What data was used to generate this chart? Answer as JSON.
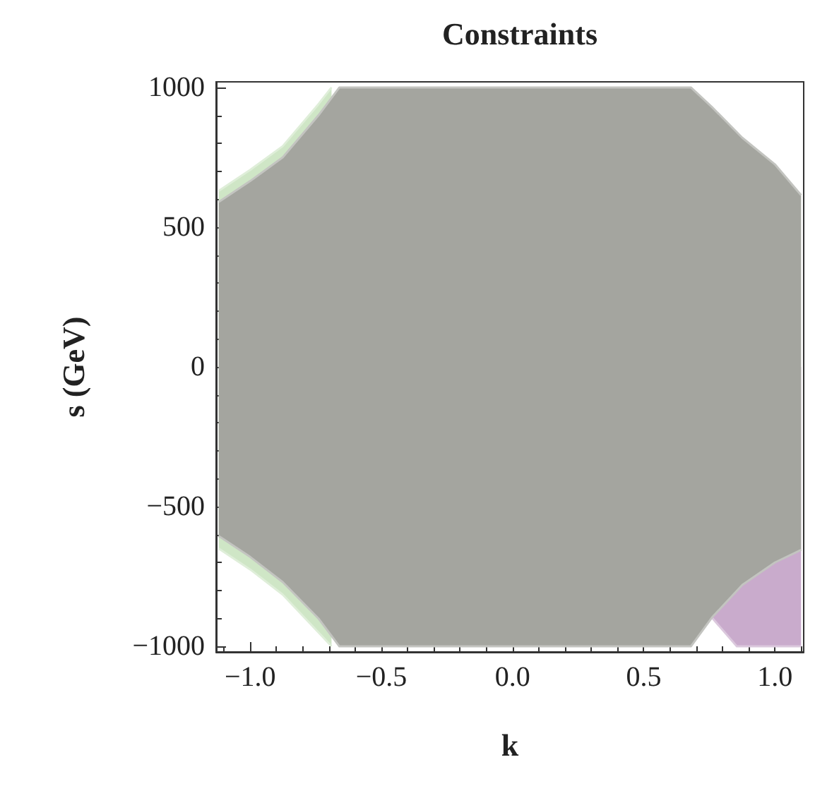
{
  "chart_data": {
    "type": "area",
    "title": "Constraints",
    "xlabel": "k",
    "ylabel": "s (GeV)",
    "xlim": [
      -1.13,
      1.11
    ],
    "ylim": [
      -1020,
      1020
    ],
    "xticks": [
      {
        "value": -1,
        "label": "−1.0"
      },
      {
        "value": -0.5,
        "label": "−0.5"
      },
      {
        "value": 0,
        "label": "0.0"
      },
      {
        "value": 0.5,
        "label": "0.5"
      },
      {
        "value": 1,
        "label": "1.0"
      }
    ],
    "yticks": [
      {
        "value": -1000,
        "label": "−1000"
      },
      {
        "value": -500,
        "label": "−500"
      },
      0,
      500,
      1000
    ],
    "series": [
      {
        "color": "#cfe6c6",
        "x": [
          -1.12,
          -1.0,
          -0.876,
          -0.74,
          -0.69
        ],
        "values": [
          630,
          705,
          790,
          940,
          1000
        ]
      },
      {
        "color": "#cfe6c6",
        "x": [
          -1.12,
          -1.0,
          -0.876,
          -0.74,
          -0.69
        ],
        "values": [
          -650,
          -725,
          -815,
          -950,
          -1000
        ]
      },
      {
        "color": "#c9abcc",
        "x": [
          0.76,
          0.855,
          1.1
        ],
        "values": [
          -897,
          -1000,
          -1000
        ]
      },
      {
        "color": "#a4a59f",
        "x": [
          -1.12,
          -1.0,
          -0.876,
          -0.74,
          -0.66,
          0.68,
          0.76,
          0.876,
          1.0,
          1.1
        ],
        "values": [
          590,
          665,
          750,
          900,
          1000,
          1000,
          930,
          820,
          725,
          615
        ]
      },
      {
        "color": "#a4a59f",
        "x": [
          -1.12,
          -1.0,
          -0.876,
          -0.74,
          -0.66,
          0.68,
          0.76,
          0.876,
          1.0,
          1.1
        ],
        "values": [
          -605,
          -680,
          -770,
          -900,
          -1000,
          -1000,
          -897,
          -780,
          -700,
          -655
        ]
      }
    ]
  }
}
